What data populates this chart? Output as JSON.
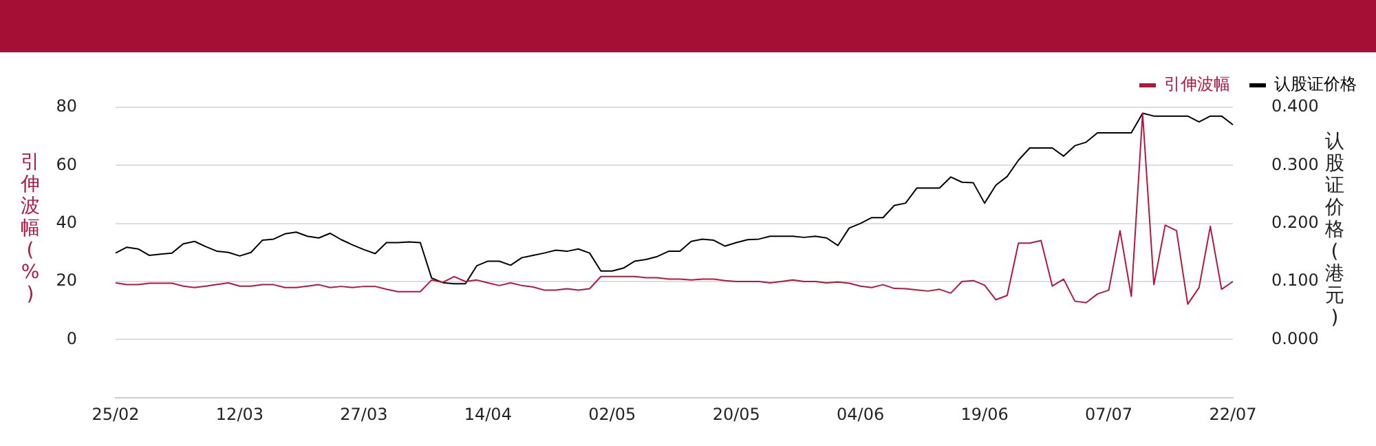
{
  "chart_data": {
    "type": "line",
    "ylabel": "引伸波幅(%)",
    "y2label": "认股证价格(港元)",
    "categories": [
      "25/02",
      null,
      null,
      null,
      null,
      null,
      null,
      null,
      null,
      null,
      null,
      "12/03",
      null,
      null,
      null,
      null,
      null,
      null,
      null,
      null,
      null,
      null,
      "27/03",
      null,
      null,
      null,
      null,
      null,
      null,
      null,
      null,
      null,
      null,
      "14/04",
      null,
      null,
      null,
      null,
      null,
      null,
      null,
      null,
      null,
      null,
      "02/05",
      null,
      null,
      null,
      null,
      null,
      null,
      null,
      null,
      null,
      null,
      "20/05",
      null,
      null,
      null,
      null,
      null,
      null,
      null,
      null,
      null,
      null,
      "04/06",
      null,
      null,
      null,
      null,
      null,
      null,
      null,
      null,
      null,
      null,
      "19/06",
      null,
      null,
      null,
      null,
      null,
      null,
      null,
      null,
      null,
      null,
      "07/07",
      null,
      null,
      null,
      null,
      null,
      null,
      null,
      null,
      null,
      null,
      "22/07"
    ],
    "series": [
      {
        "name": "引伸波幅",
        "color": "#b5173c",
        "values": [
          19.5,
          18.9,
          18.9,
          19.4,
          19.4,
          19.4,
          18.4,
          17.9,
          18.4,
          19.0,
          19.5,
          18.4,
          18.4,
          18.9,
          18.9,
          17.9,
          17.9,
          18.4,
          18.9,
          17.9,
          18.3,
          17.9,
          18.3,
          18.3,
          17.3,
          16.5,
          16.5,
          16.5,
          20.5,
          19.7,
          21.7,
          20.0,
          20.5,
          19.5,
          18.6,
          19.5,
          18.6,
          18.1,
          17.0,
          17.0,
          17.5,
          17.0,
          17.5,
          21.7,
          21.7,
          21.7,
          21.7,
          21.3,
          21.3,
          20.8,
          20.8,
          20.5,
          20.8,
          20.8,
          20.3,
          20.0,
          20.0,
          20.0,
          19.5,
          20.0,
          20.5,
          20.0,
          20.0,
          19.5,
          19.8,
          19.4,
          18.4,
          17.9,
          18.9,
          17.6,
          17.5,
          17.1,
          16.7,
          17.3,
          16.0,
          20.0,
          20.3,
          18.7,
          13.7,
          15.2,
          33.2,
          33.2,
          34.1,
          18.4,
          20.8,
          13.2,
          12.7,
          15.7,
          17.0,
          37.5,
          14.9,
          77.9,
          18.9,
          39.4,
          37.5,
          12.2,
          17.9,
          39.0,
          17.3,
          20.0
        ]
      },
      {
        "name": "认股证价格",
        "color": "#000000",
        "axis": "y2",
        "values": [
          0.149,
          0.159,
          0.156,
          0.145,
          0.147,
          0.149,
          0.165,
          0.169,
          0.16,
          0.152,
          0.15,
          0.144,
          0.15,
          0.171,
          0.173,
          0.182,
          0.185,
          0.178,
          0.175,
          0.183,
          0.172,
          0.163,
          0.155,
          0.148,
          0.167,
          0.167,
          0.168,
          0.167,
          0.106,
          0.098,
          0.096,
          0.096,
          0.127,
          0.135,
          0.135,
          0.128,
          0.141,
          0.145,
          0.149,
          0.154,
          0.152,
          0.156,
          0.149,
          0.118,
          0.118,
          0.123,
          0.135,
          0.138,
          0.143,
          0.152,
          0.152,
          0.169,
          0.173,
          0.171,
          0.161,
          0.167,
          0.172,
          0.173,
          0.178,
          0.178,
          0.178,
          0.176,
          0.178,
          0.175,
          0.162,
          0.192,
          0.2,
          0.21,
          0.21,
          0.231,
          0.235,
          0.261,
          0.261,
          0.261,
          0.28,
          0.271,
          0.27,
          0.235,
          0.266,
          0.281,
          0.309,
          0.33,
          0.33,
          0.33,
          0.316,
          0.334,
          0.34,
          0.356,
          0.356,
          0.356,
          0.356,
          0.39,
          0.385,
          0.385,
          0.385,
          0.385,
          0.375,
          0.385,
          0.385,
          0.37
        ]
      }
    ],
    "ylim": [
      -20,
      80
    ],
    "yticks": [
      0,
      20,
      40,
      60,
      80
    ],
    "y2lim": [
      -0.1,
      0.4
    ],
    "y2ticks": [
      {
        "value": 0,
        "label": "0.000"
      },
      {
        "value": 0.1,
        "label": "0.100"
      },
      {
        "value": 0.2,
        "label": "0.200"
      },
      {
        "value": 0.3,
        "label": "0.300"
      },
      {
        "value": 0.4,
        "label": "0.400"
      }
    ],
    "grid": "y",
    "legend": "top right",
    "marker": "none",
    "line_style": "solid"
  }
}
